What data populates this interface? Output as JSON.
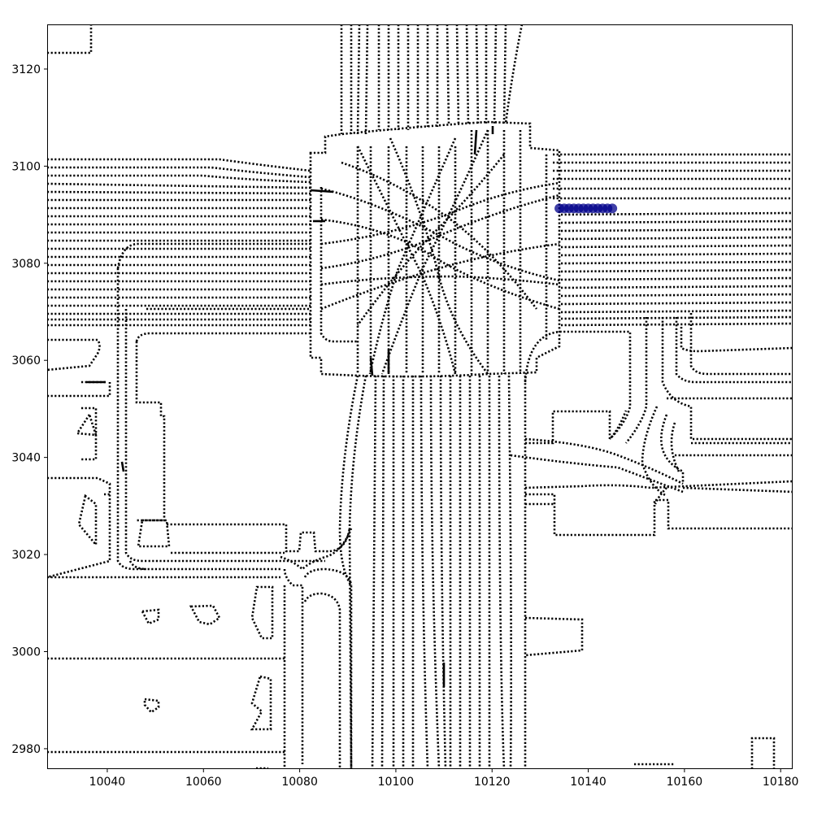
{
  "chart_data": {
    "type": "scatter",
    "title": "",
    "xlabel": "",
    "ylabel": "",
    "xlim": [
      10027.5,
      10182.5
    ],
    "ylim": [
      2975.8,
      3129.2
    ],
    "x_ticks": [
      10040,
      10060,
      10080,
      10100,
      10120,
      10140,
      10160,
      10180
    ],
    "y_ticks": [
      2980,
      3000,
      3020,
      3040,
      3060,
      3080,
      3100,
      3120
    ],
    "grid": false,
    "legend": "none",
    "series": [
      {
        "color": "#00008b",
        "marker": "circle",
        "x": [
          10134.0,
          10135.0,
          10136.0,
          10137.0,
          10138.0,
          10139.0,
          10140.0,
          10141.0,
          10142.0,
          10143.0,
          10144.0,
          10145.0
        ],
        "y": [
          3091.3,
          3091.3,
          3091.3,
          3091.3,
          3091.3,
          3091.3,
          3091.3,
          3091.3,
          3091.3,
          3091.3,
          3091.3,
          3091.3
        ]
      }
    ],
    "map_color": "#000000"
  }
}
